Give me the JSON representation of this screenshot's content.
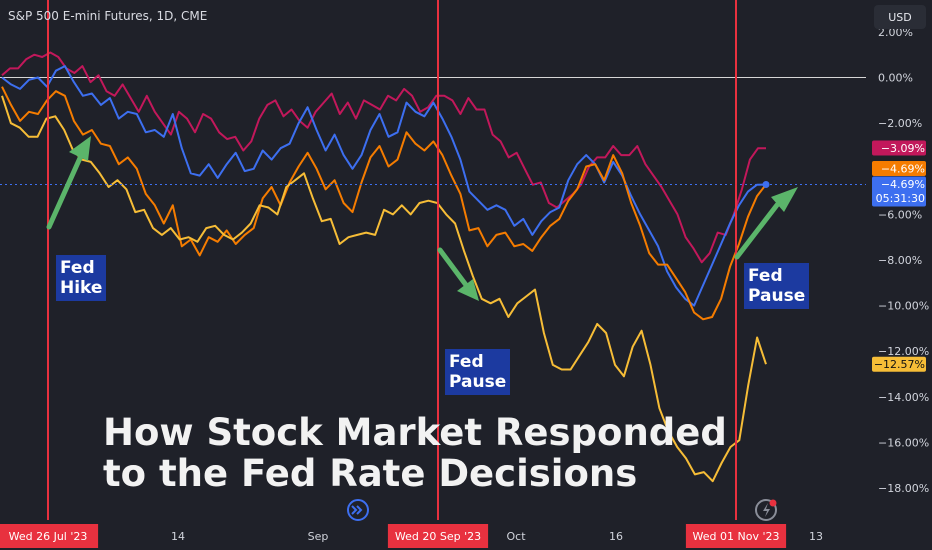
{
  "header": {
    "symbol_label": "S&P 500 E-mini Futures, 1D, CME"
  },
  "currency_button": {
    "label": "USD"
  },
  "title": {
    "line1": "How Stock Market Responded",
    "line2": "to the Fed Rate Decisions"
  },
  "annotations": [
    {
      "lines": [
        "Fed",
        "Hike"
      ]
    },
    {
      "lines": [
        "Fed",
        "Pause"
      ]
    },
    {
      "lines": [
        "Fed",
        "Pause"
      ]
    }
  ],
  "colors": {
    "background": "#1f2129",
    "event_line": "#e8313f",
    "arrow": "#5bb56a",
    "annotation_bg": "#1c3aa0",
    "magenta": "#c2185b",
    "orange": "#f57c00",
    "blue": "#3d6ff0",
    "yellow": "#f6bd37"
  },
  "icons": {
    "replay": "replay-forward-icon",
    "alert": "flash-alert-icon"
  },
  "chart_data": {
    "type": "line",
    "x_ticks": [
      "Wed 26 Jul '23",
      "14",
      "Sep",
      "Wed 20 Sep '23",
      "Oct",
      "16",
      "Wed 01 Nov '23",
      "13"
    ],
    "event_markers": [
      "Wed 26 Jul '23",
      "Wed 20 Sep '23",
      "Wed 01 Nov '23"
    ],
    "y_ticks": [
      "2.00%",
      "0.00%",
      "−2.00%",
      "−4.00%",
      "−6.00%",
      "−8.00%",
      "−10.00%",
      "−12.00%",
      "−14.00%",
      "−16.00%",
      "−18.00%"
    ],
    "ylim": [
      -19.4,
      3.4
    ],
    "baseline": 0,
    "last_value_labels": [
      {
        "text": "−3.09%",
        "value": -3.09,
        "color": "#c2185b"
      },
      {
        "text": "−4.69%",
        "value": -4.69,
        "color": "#f57c00"
      },
      {
        "text": "−4.69%",
        "value": -4.69,
        "color": "#3d6ff0",
        "countdown": "05:31:30"
      },
      {
        "text": "−12.57%",
        "value": -12.57,
        "color": "#f6bd37"
      }
    ],
    "series": [
      {
        "color": "#c2185b",
        "values": [
          0.1,
          0.4,
          0.4,
          0.8,
          1.0,
          0.9,
          1.1,
          0.9,
          0.4,
          0.2,
          0.5,
          -0.2,
          0.1,
          -0.6,
          -0.8,
          -0.3,
          -0.9,
          -1.5,
          -0.8,
          -1.5,
          -2.0,
          -2.5,
          -1.5,
          -1.8,
          -2.4,
          -1.6,
          -1.8,
          -2.4,
          -2.7,
          -2.6,
          -3.2,
          -2.8,
          -1.8,
          -1.2,
          -1.0,
          -1.7,
          -1.4,
          -1.9,
          -2.2,
          -1.5,
          -1.1,
          -0.7,
          -1.6,
          -1.1,
          -1.8,
          -1.0,
          -1.2,
          -1.4,
          -0.8,
          -1.0,
          -0.5,
          -0.8,
          -1.5,
          -1.3,
          -0.8,
          -0.8,
          -1.0,
          -1.6,
          -0.9,
          -1.4,
          -1.4,
          -2.5,
          -2.8,
          -3.5,
          -3.3,
          -4.0,
          -4.7,
          -4.6,
          -5.5,
          -5.7,
          -5.4,
          -5.1,
          -4.7,
          -3.9,
          -3.5,
          -3.5,
          -3.0,
          -3.4,
          -3.4,
          -3.0,
          -3.8,
          -4.3,
          -4.8,
          -5.4,
          -6.0,
          -7.0,
          -7.5,
          -8.1,
          -7.7,
          -6.8,
          -6.9,
          -6.0,
          -4.9,
          -3.6,
          -3.1,
          -3.1
        ]
      },
      {
        "color": "#3d6ff0",
        "values": [
          0.0,
          -0.3,
          -0.5,
          -0.1,
          0.0,
          -0.4,
          0.3,
          0.5,
          -0.2,
          -0.8,
          -0.7,
          -1.2,
          -0.9,
          -1.8,
          -1.5,
          -1.6,
          -2.4,
          -2.3,
          -2.6,
          -1.6,
          -3.1,
          -4.2,
          -4.3,
          -3.8,
          -4.4,
          -3.8,
          -3.3,
          -4.1,
          -4.0,
          -3.2,
          -3.6,
          -3.1,
          -2.9,
          -2.0,
          -1.3,
          -2.3,
          -3.2,
          -2.5,
          -3.4,
          -4.0,
          -3.4,
          -2.3,
          -1.6,
          -2.6,
          -2.4,
          -1.1,
          -1.5,
          -1.7,
          -1.1,
          -1.8,
          -2.6,
          -3.6,
          -5.0,
          -5.4,
          -5.8,
          -5.6,
          -5.8,
          -6.5,
          -6.2,
          -6.9,
          -6.3,
          -5.9,
          -5.7,
          -4.5,
          -3.8,
          -3.4,
          -3.8,
          -4.6,
          -3.7,
          -4.3,
          -5.2,
          -6.0,
          -6.7,
          -7.4,
          -8.5,
          -9.2,
          -9.7,
          -10.0,
          -9.1,
          -8.2,
          -7.3,
          -6.4,
          -5.6,
          -5.0,
          -4.7,
          -4.69
        ]
      },
      {
        "color": "#f57c00",
        "values": [
          -0.4,
          -1.2,
          -1.9,
          -1.5,
          -1.6,
          -1.0,
          -0.6,
          -0.8,
          -1.9,
          -2.5,
          -2.3,
          -2.9,
          -3.0,
          -3.8,
          -3.5,
          -4.0,
          -5.1,
          -5.6,
          -6.4,
          -5.6,
          -7.4,
          -7.1,
          -7.8,
          -7.0,
          -7.2,
          -6.7,
          -7.3,
          -6.9,
          -6.6,
          -5.3,
          -4.8,
          -5.6,
          -4.6,
          -3.9,
          -3.3,
          -4.0,
          -4.9,
          -4.5,
          -5.5,
          -5.9,
          -4.6,
          -3.5,
          -3.0,
          -3.9,
          -3.6,
          -2.4,
          -2.9,
          -3.2,
          -2.8,
          -3.4,
          -4.3,
          -5.1,
          -6.7,
          -6.6,
          -7.4,
          -6.9,
          -6.8,
          -7.4,
          -7.3,
          -7.6,
          -7.0,
          -6.5,
          -6.2,
          -5.4,
          -4.9,
          -3.9,
          -3.8,
          -4.5,
          -3.4,
          -4.2,
          -5.5,
          -6.5,
          -7.7,
          -8.2,
          -8.2,
          -8.8,
          -9.4,
          -10.3,
          -10.6,
          -10.5,
          -9.7,
          -8.3,
          -7.3,
          -6.1,
          -5.2,
          -4.69
        ]
      },
      {
        "color": "#f6bd37",
        "values": [
          -0.8,
          -2.0,
          -2.2,
          -2.6,
          -2.6,
          -1.8,
          -1.7,
          -2.3,
          -3.2,
          -3.6,
          -3.7,
          -4.2,
          -4.8,
          -4.5,
          -4.9,
          -5.9,
          -5.8,
          -6.6,
          -6.9,
          -6.6,
          -7.1,
          -7.0,
          -7.2,
          -6.6,
          -6.5,
          -6.9,
          -7.1,
          -6.8,
          -6.4,
          -5.6,
          -5.7,
          -6.0,
          -4.8,
          -4.5,
          -4.2,
          -5.3,
          -6.3,
          -6.2,
          -7.3,
          -7.0,
          -6.9,
          -6.8,
          -6.9,
          -5.8,
          -6.0,
          -5.6,
          -6.0,
          -5.5,
          -5.4,
          -5.5,
          -6.0,
          -6.4,
          -7.6,
          -8.7,
          -9.7,
          -9.9,
          -9.7,
          -10.5,
          -9.9,
          -9.6,
          -9.3,
          -11.2,
          -12.6,
          -12.8,
          -12.8,
          -12.2,
          -11.6,
          -10.8,
          -11.2,
          -12.6,
          -13.1,
          -11.8,
          -11.1,
          -12.6,
          -14.5,
          -15.5,
          -16.2,
          -16.7,
          -17.4,
          -17.3,
          -17.7,
          -16.9,
          -16.2,
          -15.9,
          -13.5,
          -11.4,
          -12.57
        ]
      }
    ]
  }
}
